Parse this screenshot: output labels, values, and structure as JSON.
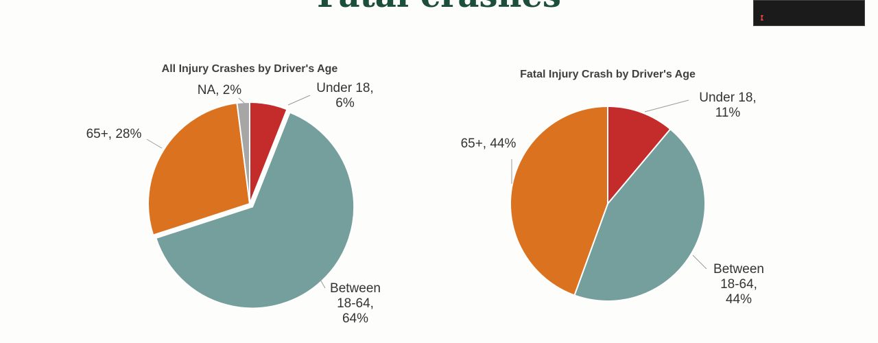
{
  "slide": {
    "title": "Fatal crashes"
  },
  "colors": {
    "under18": "#c32c2a",
    "between": "#749f9c",
    "over65": "#db7220",
    "na": "#a6a6a6",
    "title": "#1d4e3c"
  },
  "chart_data": [
    {
      "type": "pie",
      "title": "All Injury Crashes by Driver's Age",
      "slices": [
        {
          "label": "Under 18",
          "value": 6,
          "display": [
            "Under 18,",
            "6%"
          ],
          "color_key": "under18"
        },
        {
          "label": "Between 18-64",
          "value": 64,
          "display": [
            "Between",
            "18-64,",
            "64%"
          ],
          "color_key": "between"
        },
        {
          "label": "65+",
          "value": 28,
          "display": [
            "65+, 28%"
          ],
          "color_key": "over65"
        },
        {
          "label": "NA",
          "value": 2,
          "display": [
            "NA, 2%"
          ],
          "color_key": "na"
        }
      ]
    },
    {
      "type": "pie",
      "title": "Fatal Injury Crash by Driver's Age",
      "slices": [
        {
          "label": "Under 18",
          "value": 11,
          "display": [
            "Under 18,",
            "11%"
          ],
          "color_key": "under18"
        },
        {
          "label": "Between 18-64",
          "value": 44,
          "display": [
            "Between",
            "18-64,",
            "44%"
          ],
          "color_key": "between"
        },
        {
          "label": "65+",
          "value": 44,
          "display": [
            "65+, 44%"
          ],
          "color_key": "over65"
        }
      ]
    }
  ]
}
